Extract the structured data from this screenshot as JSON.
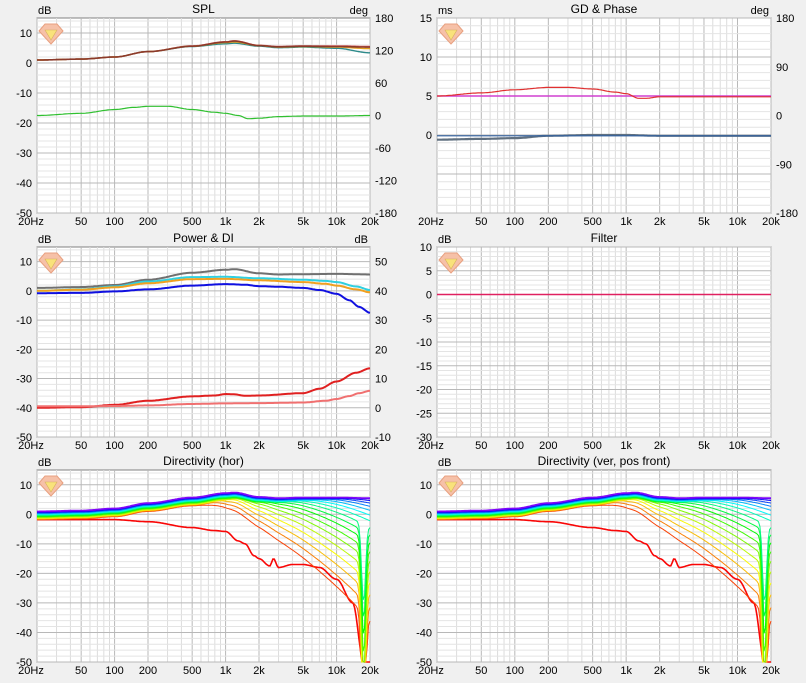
{
  "chart_data": [
    {
      "type": "line",
      "title": "SPL",
      "left_unit": "dB",
      "right_unit": "deg",
      "x_ticks": [
        "20Hz",
        "50",
        "100",
        "200",
        "500",
        "1k",
        "2k",
        "5k",
        "10k",
        "20k"
      ],
      "xlim": [
        20,
        20000
      ],
      "ylim_left": [
        -50,
        15
      ],
      "left_ticks": [
        10,
        0,
        -10,
        -20,
        -30,
        -40,
        -50
      ],
      "right_ticks": [
        180,
        120,
        60,
        0,
        -60,
        -120,
        -180
      ],
      "ylim_right": [
        -180,
        180
      ],
      "series": [
        {
          "color": "#2d8a8a",
          "axis": "left",
          "width": 1.4,
          "x": [
            20,
            50,
            100,
            200,
            500,
            1000,
            1200,
            2000,
            3000,
            5000,
            10000,
            20000
          ],
          "y": [
            1,
            1.3,
            2,
            3.8,
            5.5,
            6.4,
            6.6,
            5.6,
            5.1,
            5.3,
            4.9,
            3.4
          ]
        },
        {
          "color": "#e06060",
          "axis": "left",
          "width": 1.4,
          "x": [
            20,
            50,
            100,
            200,
            500,
            1000,
            1200,
            2000,
            3000,
            5000,
            10000,
            20000
          ],
          "y": [
            1,
            1.3,
            2,
            3.8,
            5.7,
            7.1,
            7.4,
            5.9,
            5.5,
            5.7,
            5.7,
            5.5
          ]
        },
        {
          "color": "#e0a020",
          "axis": "left",
          "width": 1.4,
          "x": [
            20,
            50,
            100,
            200,
            500,
            1000,
            1200,
            2000,
            3000,
            5000,
            10000,
            20000
          ],
          "y": [
            1,
            1.3,
            2,
            3.8,
            5.6,
            6.8,
            7.0,
            5.8,
            5.3,
            5.5,
            5.3,
            4.8
          ]
        },
        {
          "color": "#8b3a2b",
          "axis": "left",
          "width": 1.6,
          "x": [
            20,
            50,
            100,
            200,
            500,
            1000,
            1200,
            2000,
            3000,
            5000,
            10000,
            20000
          ],
          "y": [
            1,
            1.3,
            2,
            3.8,
            5.6,
            7.0,
            7.3,
            5.8,
            5.4,
            5.6,
            5.5,
            5.3
          ]
        },
        {
          "color": "#30c030",
          "axis": "right",
          "width": 1.2,
          "x": [
            20,
            50,
            100,
            150,
            200,
            300,
            500,
            800,
            1000,
            1300,
            1600,
            2000,
            3000,
            5000,
            10000,
            20000
          ],
          "y": [
            0,
            4,
            11,
            15,
            17,
            17,
            11,
            6,
            4,
            0,
            -6,
            -5,
            -2,
            -1,
            -1,
            0
          ]
        }
      ]
    },
    {
      "type": "line",
      "title": "GD & Phase",
      "left_unit": "ms",
      "right_unit": "deg",
      "x_ticks": [
        "20Hz",
        "50",
        "100",
        "200",
        "500",
        "1k",
        "2k",
        "5k",
        "10k",
        "20k"
      ],
      "xlim": [
        20,
        20000
      ],
      "ylim_left": [
        -10,
        15
      ],
      "left_ticks": [
        15,
        10,
        5,
        0
      ],
      "right_ticks": [
        180,
        90,
        0,
        -90,
        -180
      ],
      "ylim_right": [
        -180,
        180
      ],
      "series": [
        {
          "color": "#d040d0",
          "axis": "left",
          "width": 1.4,
          "x": [
            20,
            20000
          ],
          "y": [
            5,
            5
          ]
        },
        {
          "color": "#e03030",
          "axis": "left",
          "width": 1.2,
          "x": [
            20,
            50,
            100,
            200,
            300,
            500,
            800,
            1000,
            1300,
            1500,
            2000,
            3000,
            5000,
            10000,
            20000
          ],
          "y": [
            5,
            5.4,
            5.8,
            6.1,
            6.1,
            5.9,
            5.5,
            5.3,
            4.7,
            4.7,
            4.9,
            4.9,
            4.9,
            4.9,
            4.9
          ]
        },
        {
          "color": "#607080",
          "axis": "left",
          "width": 2.2,
          "x": [
            20,
            50,
            100,
            200,
            500,
            1000,
            2000,
            5000,
            10000,
            20000
          ],
          "y": [
            -0.6,
            -0.5,
            -0.4,
            -0.1,
            0,
            0,
            -0.1,
            -0.1,
            -0.1,
            -0.1
          ]
        },
        {
          "color": "#3060a0",
          "axis": "left",
          "width": 1.2,
          "x": [
            20,
            50,
            100,
            200,
            500,
            1000,
            2000,
            5000,
            10000,
            20000
          ],
          "y": [
            -0.1,
            -0.1,
            -0.1,
            -0.1,
            -0.1,
            -0.1,
            -0.1,
            -0.1,
            -0.1,
            -0.1
          ]
        }
      ]
    },
    {
      "type": "line",
      "title": "Power & DI",
      "left_unit": "dB",
      "right_unit": "dB",
      "x_ticks": [
        "20Hz",
        "50",
        "100",
        "200",
        "500",
        "1k",
        "2k",
        "5k",
        "10k",
        "20k"
      ],
      "xlim": [
        20,
        20000
      ],
      "ylim_left": [
        -50,
        15
      ],
      "left_ticks": [
        10,
        0,
        -10,
        -20,
        -30,
        -40,
        -50
      ],
      "right_ticks": [
        50,
        40,
        30,
        20,
        10,
        0,
        -10
      ],
      "ylim_right": [
        -10,
        55
      ],
      "series": [
        {
          "color": "#707070",
          "axis": "left",
          "width": 2,
          "x": [
            20,
            50,
            100,
            200,
            500,
            1000,
            1200,
            2000,
            3000,
            5000,
            10000,
            20000
          ],
          "y": [
            1,
            1.3,
            2,
            3.8,
            6.2,
            7.2,
            7.4,
            6.0,
            5.6,
            5.7,
            5.8,
            5.6
          ]
        },
        {
          "color": "#30d0e0",
          "axis": "left",
          "width": 2,
          "x": [
            20,
            50,
            100,
            200,
            500,
            1000,
            2000,
            5000,
            8000,
            10000,
            15000,
            20000
          ],
          "y": [
            0,
            0.5,
            1.5,
            3.2,
            4.7,
            4.8,
            4.3,
            3.8,
            3.4,
            3.0,
            1.5,
            0.3
          ]
        },
        {
          "color": "#f0a020",
          "axis": "left",
          "width": 2,
          "x": [
            20,
            50,
            100,
            200,
            500,
            1000,
            2000,
            5000,
            8000,
            10000,
            15000,
            20000
          ],
          "y": [
            0,
            0.4,
            1.2,
            2.6,
            4.0,
            4.1,
            3.6,
            3.0,
            2.4,
            1.8,
            0.5,
            -0.5
          ]
        },
        {
          "color": "#1010e0",
          "axis": "left",
          "width": 2,
          "x": [
            20,
            50,
            100,
            200,
            500,
            1000,
            1500,
            2000,
            3000,
            5000,
            7000,
            10000,
            13000,
            16000,
            20000
          ],
          "y": [
            -0.8,
            -0.7,
            -0.2,
            0.5,
            1.8,
            2.3,
            2.1,
            1.6,
            1.4,
            1.0,
            0.3,
            -1.0,
            -3.2,
            -5.5,
            -7.5
          ]
        },
        {
          "color": "#e02020",
          "axis": "right",
          "width": 2,
          "x": [
            20,
            50,
            100,
            200,
            500,
            800,
            1000,
            1200,
            1500,
            2000,
            5000,
            7000,
            10000,
            15000,
            20000
          ],
          "y": [
            0,
            0.2,
            1,
            2.4,
            3.9,
            4.2,
            4.7,
            4.6,
            4.1,
            4.2,
            5,
            6.5,
            9.0,
            12.0,
            13.5
          ]
        },
        {
          "color": "#f07070",
          "axis": "right",
          "width": 2,
          "x": [
            20,
            50,
            100,
            200,
            500,
            1000,
            2000,
            5000,
            8000,
            10000,
            13000,
            16000,
            20000
          ],
          "y": [
            0.5,
            0.5,
            0.6,
            0.8,
            1.3,
            1.5,
            1.6,
            1.8,
            2.4,
            3.0,
            4.0,
            5.0,
            5.8
          ]
        }
      ]
    },
    {
      "type": "line",
      "title": "Filter",
      "left_unit": "dB",
      "x_ticks": [
        "20Hz",
        "50",
        "100",
        "200",
        "500",
        "1k",
        "2k",
        "5k",
        "10k",
        "20k"
      ],
      "xlim": [
        20,
        20000
      ],
      "ylim_left": [
        -30,
        10
      ],
      "left_ticks": [
        10,
        5,
        0,
        -5,
        -10,
        -15,
        -20,
        -25,
        -30
      ],
      "series": [
        {
          "color": "#e02060",
          "axis": "left",
          "width": 1.5,
          "x": [
            20,
            20000
          ],
          "y": [
            0,
            0
          ]
        }
      ]
    },
    {
      "type": "line",
      "title": "Directivity (hor)",
      "left_unit": "dB",
      "x_ticks": [
        "20Hz",
        "50",
        "100",
        "200",
        "500",
        "1k",
        "2k",
        "5k",
        "10k",
        "20k"
      ],
      "xlim": [
        20,
        20000
      ],
      "ylim_left": [
        -50,
        15
      ],
      "left_ticks": [
        10,
        0,
        -10,
        -20,
        -30,
        -40,
        -50
      ],
      "directivity": {
        "count": 19,
        "base_x": [
          20,
          50,
          100,
          200,
          500,
          1000,
          1200,
          2000,
          3000,
          5000,
          10000,
          20000
        ],
        "base_y": [
          1,
          1.3,
          2,
          3.8,
          5.7,
          7.2,
          7.4,
          5.9,
          5.5,
          5.7,
          5.7,
          5.5
        ],
        "off_low_db": 3,
        "off_high_db": 36,
        "notch_x": 17500,
        "notch_y": -50,
        "red_features": {
          "x": [
            20,
            100,
            200,
            500,
            800,
            1000,
            1300,
            1500,
            1800,
            2000,
            2500,
            2700,
            3000,
            4000,
            5000,
            7000,
            10000,
            14000,
            17500
          ],
          "y": [
            -1.8,
            -1.8,
            -2.5,
            -4.5,
            -5.5,
            -5.8,
            -9,
            -10,
            -14,
            -15,
            -17.5,
            -15,
            -18,
            -17,
            -17,
            -18,
            -22,
            -30,
            -50
          ]
        }
      }
    },
    {
      "type": "line",
      "title": "Directivity (ver, pos front)",
      "left_unit": "dB",
      "x_ticks": [
        "20Hz",
        "50",
        "100",
        "200",
        "500",
        "1k",
        "2k",
        "5k",
        "10k",
        "20k"
      ],
      "xlim": [
        20,
        20000
      ],
      "ylim_left": [
        -50,
        15
      ],
      "left_ticks": [
        10,
        0,
        -10,
        -20,
        -30,
        -40,
        -50
      ],
      "directivity": {
        "count": 19,
        "base_x": [
          20,
          50,
          100,
          200,
          500,
          1000,
          1200,
          2000,
          3000,
          5000,
          10000,
          20000
        ],
        "base_y": [
          1,
          1.3,
          2,
          3.8,
          5.7,
          7.2,
          7.4,
          5.9,
          5.5,
          5.7,
          5.7,
          5.5
        ],
        "off_low_db": 3,
        "off_high_db": 36,
        "notch_x": 17500,
        "notch_y": -50,
        "red_features": {
          "x": [
            20,
            100,
            200,
            500,
            800,
            1000,
            1300,
            1500,
            1800,
            2000,
            2500,
            2700,
            3000,
            4000,
            5000,
            7000,
            10000,
            14000,
            17500
          ],
          "y": [
            -1.8,
            -1.8,
            -2.5,
            -4.5,
            -5.5,
            -5.8,
            -9,
            -10,
            -14,
            -15,
            -17.5,
            -15,
            -18,
            -17,
            -17,
            -18,
            -22,
            -30,
            -50
          ]
        }
      }
    }
  ]
}
